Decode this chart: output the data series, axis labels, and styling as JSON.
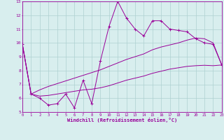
{
  "x": [
    0,
    1,
    2,
    3,
    4,
    5,
    6,
    7,
    8,
    9,
    10,
    11,
    12,
    13,
    14,
    15,
    16,
    17,
    18,
    19,
    20,
    21,
    22,
    23
  ],
  "y_main": [
    9.9,
    6.3,
    6.0,
    5.5,
    5.6,
    6.3,
    5.3,
    7.3,
    5.6,
    8.7,
    11.2,
    13.0,
    11.8,
    11.0,
    10.5,
    11.6,
    11.6,
    11.0,
    10.9,
    10.8,
    10.3,
    10.0,
    9.9,
    8.4
  ],
  "y_upper": [
    9.9,
    6.3,
    6.6,
    6.85,
    7.05,
    7.25,
    7.45,
    7.65,
    7.85,
    8.05,
    8.3,
    8.55,
    8.8,
    9.0,
    9.2,
    9.5,
    9.7,
    9.85,
    10.0,
    10.2,
    10.35,
    10.3,
    10.0,
    8.4
  ],
  "y_lower": [
    9.9,
    6.3,
    6.15,
    6.2,
    6.3,
    6.4,
    6.5,
    6.6,
    6.65,
    6.75,
    6.9,
    7.1,
    7.3,
    7.45,
    7.6,
    7.8,
    7.95,
    8.1,
    8.2,
    8.3,
    8.35,
    8.38,
    8.35,
    8.4
  ],
  "line_color": "#990099",
  "bg_color": "#d8eeee",
  "grid_color": "#aed0d0",
  "xlabel": "Windchill (Refroidissement éolien,°C)",
  "xlim": [
    0,
    23
  ],
  "ylim": [
    5,
    13
  ],
  "xticks": [
    0,
    1,
    2,
    3,
    4,
    5,
    6,
    7,
    8,
    9,
    10,
    11,
    12,
    13,
    14,
    15,
    16,
    17,
    18,
    19,
    20,
    21,
    22,
    23
  ],
  "yticks": [
    5,
    6,
    7,
    8,
    9,
    10,
    11,
    12,
    13
  ]
}
